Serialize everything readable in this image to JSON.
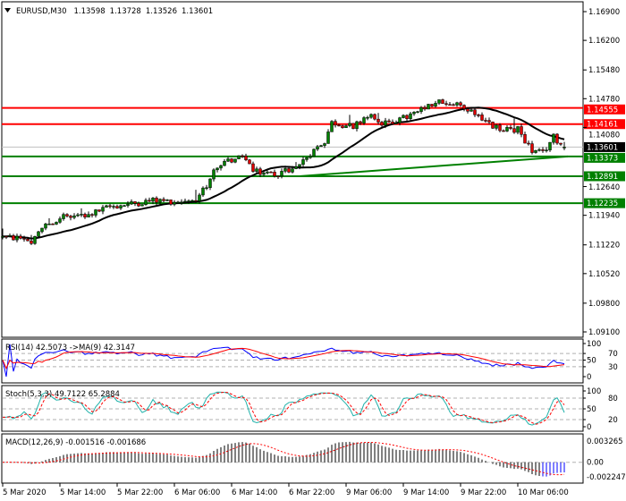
{
  "header": {
    "symbol": "EURUSD,M30",
    "open": "1.13598",
    "high": "1.13728",
    "low": "1.13526",
    "close": "1.13601",
    "menu_icon": "triangle-down-icon"
  },
  "colors": {
    "bull": "#008000",
    "bear": "#e00000",
    "resistance": "#ff0000",
    "support": "#008000",
    "ma": "#000000",
    "rsi": "#0000ff",
    "rsi_ma": "#ff0000",
    "stoch_k": "#20b2aa",
    "stoch_d": "#ff0000",
    "macd_hist": "#000000",
    "macd_signal": "#ff0000",
    "current_price_bg": "#000000"
  },
  "chart_data": [
    {
      "type": "candlestick",
      "title": "EURUSD,M30",
      "ylim": [
        1.091,
        1.169
      ],
      "price_ticks": [
        "1.16900",
        "1.16200",
        "1.15480",
        "1.14780",
        "1.14080",
        "1.12640",
        "1.11940",
        "1.11220",
        "1.10520",
        "1.09800",
        "1.09100"
      ],
      "x_tick_labels": [
        "5 Mar 2020",
        "5 Mar 14:00",
        "5 Mar 22:00",
        "6 Mar 06:00",
        "6 Mar 14:00",
        "6 Mar 22:00",
        "9 Mar 06:00",
        "9 Mar 14:00",
        "9 Mar 22:00",
        "10 Mar 06:00"
      ],
      "last_bar": {
        "open": 1.13598,
        "high": 1.13728,
        "low": 1.13526,
        "close": 1.13601
      },
      "approx_close_path": [
        [
          "5 Mar 06:00",
          1.114
        ],
        [
          "5 Mar 09:00",
          1.1138
        ],
        [
          "5 Mar 10:00",
          1.1128
        ],
        [
          "5 Mar 12:00",
          1.117
        ],
        [
          "5 Mar 14:00",
          1.119
        ],
        [
          "5 Mar 18:00",
          1.1195
        ],
        [
          "5 Mar 21:00",
          1.1215
        ],
        [
          "6 Mar 00:00",
          1.1222
        ],
        [
          "6 Mar 03:00",
          1.123
        ],
        [
          "6 Mar 06:00",
          1.1228
        ],
        [
          "6 Mar 09:00",
          1.1232
        ],
        [
          "6 Mar 11:00",
          1.128
        ],
        [
          "6 Mar 12:00",
          1.1315
        ],
        [
          "6 Mar 14:00",
          1.133
        ],
        [
          "6 Mar 16:00",
          1.1335
        ],
        [
          "6 Mar 17:00",
          1.13
        ],
        [
          "6 Mar 20:00",
          1.1295
        ],
        [
          "6 Mar 23:00",
          1.131
        ],
        [
          "9 Mar 01:00",
          1.1345
        ],
        [
          "9 Mar 03:00",
          1.1375
        ],
        [
          "9 Mar 04:00",
          1.142
        ],
        [
          "9 Mar 07:00",
          1.141
        ],
        [
          "9 Mar 09:00",
          1.144
        ],
        [
          "9 Mar 11:00",
          1.1415
        ],
        [
          "9 Mar 14:00",
          1.143
        ],
        [
          "9 Mar 16:00",
          1.1445
        ],
        [
          "9 Mar 19:00",
          1.147
        ],
        [
          "9 Mar 22:00",
          1.146
        ],
        [
          "10 Mar 00:00",
          1.1445
        ],
        [
          "10 Mar 02:00",
          1.1415
        ],
        [
          "10 Mar 04:00",
          1.14
        ],
        [
          "10 Mar 06:00",
          1.1405
        ],
        [
          "10 Mar 08:00",
          1.135
        ],
        [
          "10 Mar 09:30",
          1.1345
        ],
        [
          "10 Mar 11:00",
          1.1385
        ],
        [
          "10 Mar 12:30",
          1.136
        ]
      ],
      "levels": [
        {
          "price": 1.14555,
          "label": "1.14555",
          "kind": "resistance"
        },
        {
          "price": 1.14161,
          "label": "1.14161",
          "kind": "resistance"
        },
        {
          "price": 1.13373,
          "label": "1.13373",
          "kind": "support"
        },
        {
          "price": 1.12891,
          "label": "1.12891",
          "kind": "support"
        },
        {
          "price": 1.12235,
          "label": "1.12235",
          "kind": "support"
        }
      ],
      "current_price": {
        "price": 1.13601,
        "label": "1.13601"
      },
      "trendline": {
        "from": [
          "6 Mar 23:30",
          1.12891
        ],
        "to": [
          "10 Mar 13:00",
          1.13373
        ]
      }
    },
    {
      "type": "line",
      "title": "RSI(14) 42.5073  ->MA(9) 42.3147",
      "ylim": [
        0,
        100
      ],
      "ticks": [
        "100",
        "70",
        "50",
        "30",
        "0"
      ],
      "levels": [
        70,
        50,
        30
      ]
    },
    {
      "type": "line",
      "title": "Stoch(5,3,3) 49.7122 65.2884",
      "ylim": [
        0,
        100
      ],
      "ticks": [
        "100",
        "80",
        "50",
        "20",
        "0"
      ],
      "levels": [
        80,
        50,
        20
      ]
    },
    {
      "type": "bar",
      "title": "MACD(12,26,9) -0.001516 -0.001686",
      "ylim": [
        -0.002247,
        0.003265
      ],
      "ticks": [
        "0.003265",
        "0.00",
        "-0.002247"
      ]
    }
  ]
}
